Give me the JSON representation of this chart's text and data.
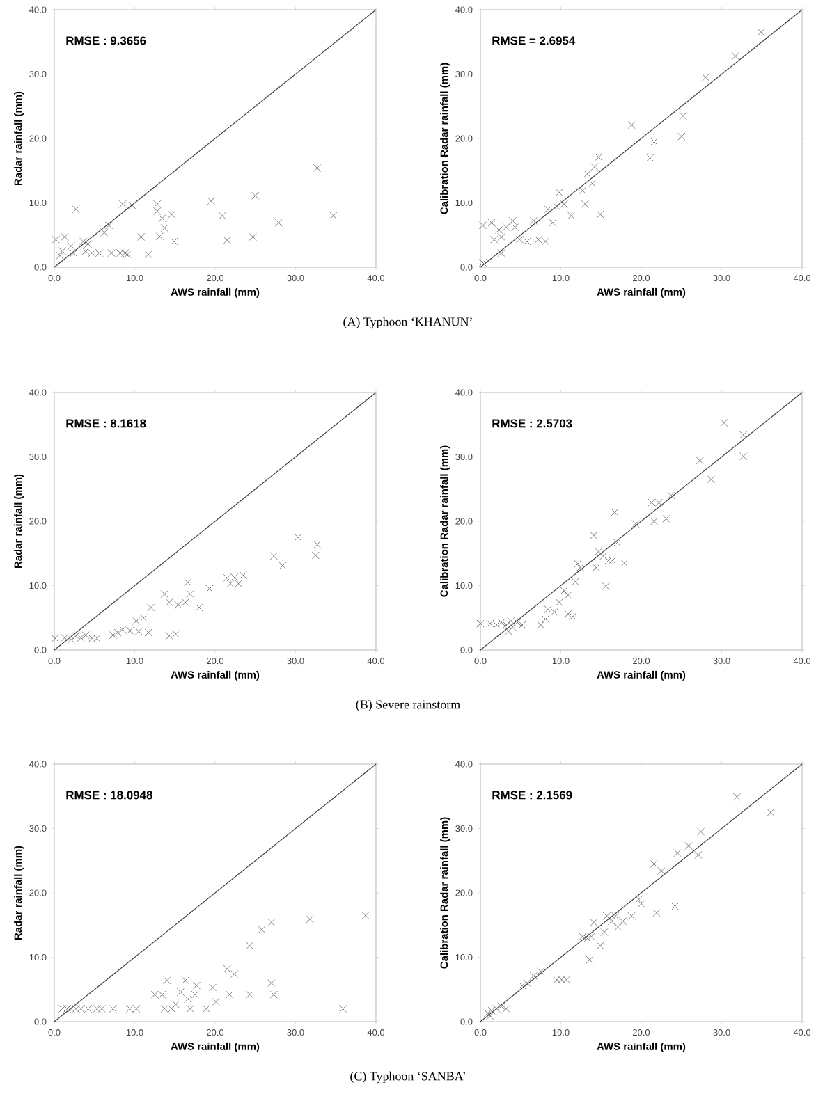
{
  "chart_data": [
    {
      "type": "scatter",
      "marker": "cross",
      "xlabel": "AWS rainfall (mm)",
      "ylabel": "Radar rainfall (mm)",
      "xlim": [
        0,
        40
      ],
      "ylim": [
        0,
        40
      ],
      "xticks": [
        {
          "value": 0,
          "label": "0.0"
        },
        {
          "value": 10,
          "label": "10.0"
        },
        {
          "value": 20,
          "label": "20.0"
        },
        {
          "value": 30,
          "label": "30.0"
        },
        {
          "value": 40,
          "label": "40.0"
        }
      ],
      "yticks": [
        {
          "value": 0,
          "label": "0.0"
        },
        {
          "value": 10,
          "label": "10.0"
        },
        {
          "value": 20,
          "label": "20.0"
        },
        {
          "value": 30,
          "label": "30.0"
        },
        {
          "value": 40,
          "label": "40.0"
        }
      ],
      "annotations": [
        "RMSE : 9.3656",
        "(A) Typhoon ‘KHANUN’"
      ],
      "series": [
        {
          "type": "scatter",
          "color": "#707070",
          "x": [
            0.2,
            1.0,
            1.3,
            2.4,
            0.7,
            2.1,
            2.7,
            3.6,
            3.9,
            4.7,
            4.2,
            5.6,
            6.2,
            6.8,
            7.1,
            8.2,
            8.8,
            8.5,
            9.7,
            9.1,
            10.8,
            11.7,
            12.8,
            12.8,
            13.1,
            13.4,
            13.7,
            14.6,
            14.9,
            19.5,
            20.9,
            21.5,
            24.7,
            25.0,
            27.9,
            32.7,
            34.7
          ],
          "values": [
            4.3,
            2.5,
            4.7,
            2.2,
            1.8,
            3.3,
            9.0,
            4.0,
            2.5,
            2.2,
            3.6,
            2.2,
            5.4,
            6.5,
            2.2,
            2.2,
            2.2,
            9.8,
            9.6,
            2.0,
            4.7,
            2.0,
            9.8,
            8.7,
            4.8,
            7.6,
            6.1,
            8.2,
            4.0,
            10.3,
            8.0,
            4.2,
            4.7,
            11.1,
            6.9,
            15.4,
            8.0
          ]
        },
        {
          "type": "line",
          "marker": "none",
          "color": "#404040",
          "x": [
            0,
            40
          ],
          "values": [
            0,
            40
          ]
        }
      ]
    },
    {
      "type": "scatter",
      "marker": "cross",
      "xlabel": "AWS rainfall (mm)",
      "ylabel": "Calibration Radar rainfall (mm)",
      "xlim": [
        0,
        40
      ],
      "ylim": [
        0,
        40
      ],
      "xticks": [
        {
          "value": 0,
          "label": "0.0"
        },
        {
          "value": 10,
          "label": "10.0"
        },
        {
          "value": 20,
          "label": "20.0"
        },
        {
          "value": 30,
          "label": "30.0"
        },
        {
          "value": 40,
          "label": "40.0"
        }
      ],
      "yticks": [
        {
          "value": 0,
          "label": "0.0"
        },
        {
          "value": 10,
          "label": "10.0"
        },
        {
          "value": 20,
          "label": "20.0"
        },
        {
          "value": 30,
          "label": "30.0"
        },
        {
          "value": 40,
          "label": "40.0"
        }
      ],
      "annotations": [
        "RMSE = 2.6954"
      ],
      "series": [
        {
          "type": "scatter",
          "color": "#707070",
          "x": [
            0.3,
            0.3,
            1.4,
            1.7,
            2.3,
            2.6,
            2.6,
            3.2,
            4.0,
            4.3,
            4.9,
            5.8,
            6.6,
            7.2,
            8.1,
            8.4,
            9.0,
            9.8,
            9.5,
            10.4,
            11.3,
            12.7,
            13.0,
            13.3,
            13.9,
            14.2,
            14.7,
            14.9,
            18.8,
            21.1,
            21.6,
            25.0,
            25.2,
            28.0,
            31.7,
            34.9
          ],
          "values": [
            6.5,
            0.7,
            6.9,
            4.3,
            5.8,
            4.7,
            2.2,
            6.2,
            7.2,
            6.2,
            4.3,
            4.0,
            7.2,
            4.3,
            4.0,
            9.0,
            6.9,
            11.6,
            9.4,
            9.8,
            8.0,
            11.9,
            9.8,
            14.5,
            13.0,
            15.6,
            17.1,
            8.2,
            22.1,
            17.0,
            19.5,
            20.3,
            23.5,
            29.5,
            32.8,
            36.5
          ]
        },
        {
          "type": "line",
          "marker": "none",
          "color": "#404040",
          "x": [
            0,
            40
          ],
          "values": [
            0,
            40
          ]
        }
      ]
    },
    {
      "type": "scatter",
      "marker": "cross",
      "xlabel": "AWS rainfall (mm)",
      "ylabel": "Radar rainfall (mm)",
      "xlim": [
        0,
        40
      ],
      "ylim": [
        0,
        40
      ],
      "xticks": [
        {
          "value": 0,
          "label": "0.0"
        },
        {
          "value": 10,
          "label": "10.0"
        },
        {
          "value": 20,
          "label": "20.0"
        },
        {
          "value": 30,
          "label": "30.0"
        },
        {
          "value": 40,
          "label": "40.0"
        }
      ],
      "yticks": [
        {
          "value": 0,
          "label": "0.0"
        },
        {
          "value": 10,
          "label": "10.0"
        },
        {
          "value": 20,
          "label": "20.0"
        },
        {
          "value": 30,
          "label": "30.0"
        },
        {
          "value": 40,
          "label": "40.0"
        }
      ],
      "annotations": [
        "RMSE : 8.1618",
        "(B) Severe rainstorm"
      ],
      "series": [
        {
          "type": "scatter",
          "color": "#707070",
          "x": [
            0.1,
            1.3,
            2.1,
            2.7,
            3.3,
            3.9,
            4.7,
            5.3,
            7.3,
            7.9,
            8.5,
            9.4,
            10.2,
            10.5,
            11.1,
            11.7,
            12.0,
            13.7,
            14.3,
            14.3,
            15.1,
            15.4,
            16.3,
            16.6,
            16.9,
            18.0,
            19.3,
            21.5,
            21.9,
            22.4,
            22.9,
            23.5,
            27.3,
            28.4,
            30.3,
            32.7,
            32.5
          ],
          "values": [
            1.8,
            1.9,
            1.6,
            2.2,
            1.9,
            2.3,
            1.8,
            1.8,
            2.3,
            2.7,
            3.2,
            3.0,
            4.5,
            2.9,
            5.0,
            2.7,
            6.6,
            8.7,
            7.4,
            2.2,
            2.5,
            7.0,
            7.4,
            10.5,
            8.7,
            6.6,
            9.5,
            11.2,
            10.3,
            11.3,
            10.3,
            11.6,
            14.6,
            13.1,
            17.5,
            16.4,
            14.7
          ]
        },
        {
          "type": "line",
          "marker": "none",
          "color": "#404040",
          "x": [
            0,
            40
          ],
          "values": [
            0,
            40
          ]
        }
      ]
    },
    {
      "type": "scatter",
      "marker": "cross",
      "xlabel": "AWS rainfall (mm)",
      "ylabel": "Calibration Radar rainfall (mm)",
      "xlim": [
        0,
        40
      ],
      "ylim": [
        0,
        40
      ],
      "xticks": [
        {
          "value": 0,
          "label": "0.0"
        },
        {
          "value": 10,
          "label": "10.0"
        },
        {
          "value": 20,
          "label": "20.0"
        },
        {
          "value": 30,
          "label": "30.0"
        },
        {
          "value": 40,
          "label": "40.0"
        }
      ],
      "yticks": [
        {
          "value": 0,
          "label": "0.0"
        },
        {
          "value": 10,
          "label": "10.0"
        },
        {
          "value": 20,
          "label": "20.0"
        },
        {
          "value": 30,
          "label": "30.0"
        },
        {
          "value": 40,
          "label": "40.0"
        }
      ],
      "annotations": [
        "RMSE : 2.5703"
      ],
      "series": [
        {
          "type": "scatter",
          "color": "#707070",
          "x": [
            0.0,
            1.2,
            2.0,
            2.6,
            3.2,
            3.8,
            4.0,
            4.6,
            5.2,
            3.5,
            7.5,
            8.1,
            8.4,
            9.2,
            9.8,
            10.4,
            10.9,
            10.9,
            11.5,
            11.8,
            12.1,
            12.4,
            14.1,
            14.4,
            14.7,
            15.3,
            15.6,
            15.9,
            16.4,
            16.7,
            17.0,
            17.9,
            19.3,
            21.3,
            21.6,
            22.2,
            23.1,
            23.7,
            27.3,
            28.7,
            30.3,
            32.7,
            32.7
          ],
          "values": [
            4.1,
            4.1,
            3.9,
            4.3,
            3.9,
            4.5,
            3.6,
            4.3,
            3.9,
            2.9,
            3.9,
            4.8,
            6.3,
            5.9,
            7.4,
            9.2,
            5.6,
            8.5,
            5.2,
            10.6,
            13.4,
            12.8,
            17.8,
            12.8,
            15.3,
            14.6,
            9.9,
            13.9,
            13.9,
            21.4,
            16.7,
            13.5,
            19.6,
            22.9,
            20.0,
            22.9,
            20.4,
            24.0,
            29.4,
            26.5,
            35.3,
            30.1,
            33.4
          ]
        },
        {
          "type": "line",
          "marker": "none",
          "color": "#404040",
          "x": [
            0,
            40
          ],
          "values": [
            0,
            40
          ]
        }
      ]
    },
    {
      "type": "scatter",
      "marker": "cross",
      "xlabel": "AWS rainfall (mm)",
      "ylabel": "Radar rainfall (mm)",
      "xlim": [
        0,
        40
      ],
      "ylim": [
        0,
        40
      ],
      "xticks": [
        {
          "value": 0,
          "label": "0.0"
        },
        {
          "value": 10,
          "label": "10.0"
        },
        {
          "value": 20,
          "label": "20.0"
        },
        {
          "value": 30,
          "label": "30.0"
        },
        {
          "value": 40,
          "label": "40.0"
        }
      ],
      "yticks": [
        {
          "value": 0,
          "label": "0.0"
        },
        {
          "value": 10,
          "label": "10.0"
        },
        {
          "value": 20,
          "label": "20.0"
        },
        {
          "value": 30,
          "label": "30.0"
        },
        {
          "value": 40,
          "label": "40.0"
        }
      ],
      "annotations": [
        "RMSE : 18.0948",
        "(C) Typhoon ‘SANBA’"
      ],
      "series": [
        {
          "type": "scatter",
          "color": "#707070",
          "x": [
            1.0,
            1.6,
            2.1,
            2.7,
            3.3,
            4.2,
            5.3,
            5.9,
            7.3,
            9.4,
            10.2,
            12.5,
            13.4,
            13.7,
            14.0,
            14.6,
            15.1,
            15.7,
            16.3,
            16.6,
            16.9,
            17.5,
            17.7,
            18.9,
            19.7,
            20.1,
            21.5,
            21.8,
            22.4,
            24.3,
            24.3,
            25.8,
            27.0,
            27.0,
            27.3,
            31.8,
            35.9,
            38.7
          ],
          "values": [
            2.0,
            2.0,
            2.0,
            2.0,
            2.0,
            2.0,
            2.0,
            2.0,
            2.0,
            2.0,
            2.0,
            4.2,
            4.2,
            2.0,
            6.4,
            2.0,
            2.7,
            4.6,
            6.4,
            3.5,
            2.0,
            4.2,
            5.6,
            2.0,
            5.3,
            3.1,
            8.2,
            4.2,
            7.4,
            11.8,
            4.2,
            14.3,
            15.4,
            6.0,
            4.2,
            15.9,
            2.0,
            16.5
          ]
        },
        {
          "type": "line",
          "marker": "none",
          "color": "#404040",
          "x": [
            0,
            40
          ],
          "values": [
            0,
            40
          ]
        }
      ]
    },
    {
      "type": "scatter",
      "marker": "cross",
      "xlabel": "AWS rainfall (mm)",
      "ylabel": "Calibration Radar rainfall (mm)",
      "xlim": [
        0,
        40
      ],
      "ylim": [
        0,
        40
      ],
      "xticks": [
        {
          "value": 0,
          "label": "0.0"
        },
        {
          "value": 10,
          "label": "10.0"
        },
        {
          "value": 20,
          "label": "20.0"
        },
        {
          "value": 30,
          "label": "30.0"
        },
        {
          "value": 40,
          "label": "40.0"
        }
      ],
      "yticks": [
        {
          "value": 0,
          "label": "0.0"
        },
        {
          "value": 10,
          "label": "10.0"
        },
        {
          "value": 20,
          "label": "20.0"
        },
        {
          "value": 30,
          "label": "30.0"
        },
        {
          "value": 40,
          "label": "40.0"
        }
      ],
      "annotations": [
        "RMSE : 2.1569"
      ],
      "series": [
        {
          "type": "scatter",
          "color": "#707070",
          "x": [
            0.9,
            1.4,
            2.0,
            2.6,
            3.2,
            1.2,
            5.2,
            5.8,
            6.6,
            7.5,
            10.1,
            10.7,
            9.5,
            12.7,
            13.3,
            13.8,
            13.6,
            14.1,
            14.9,
            15.4,
            15.7,
            16.3,
            16.8,
            17.1,
            17.7,
            18.8,
            19.7,
            20.0,
            21.6,
            21.9,
            22.5,
            24.2,
            24.5,
            25.9,
            27.1,
            27.4,
            31.9,
            36.1
          ],
          "values": [
            1.3,
            1.7,
            2.0,
            2.4,
            2.0,
            0.9,
            5.6,
            6.0,
            7.1,
            7.8,
            6.5,
            6.5,
            6.5,
            13.2,
            12.9,
            13.2,
            9.6,
            15.4,
            11.8,
            13.9,
            16.4,
            15.6,
            16.4,
            14.7,
            15.6,
            16.4,
            19.0,
            18.3,
            24.5,
            16.9,
            23.4,
            17.9,
            26.2,
            27.3,
            25.9,
            29.5,
            34.9,
            32.5
          ]
        },
        {
          "type": "line",
          "marker": "none",
          "color": "#404040",
          "x": [
            0,
            40
          ],
          "values": [
            0,
            40
          ]
        }
      ]
    }
  ]
}
